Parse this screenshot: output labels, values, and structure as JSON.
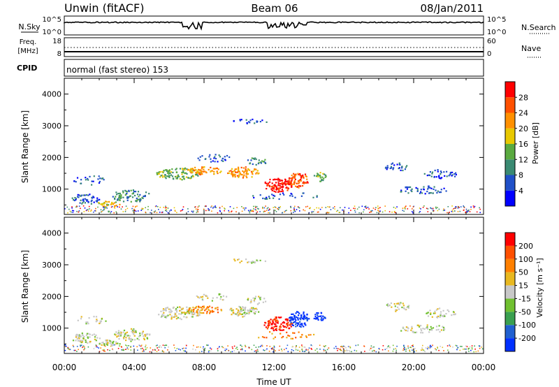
{
  "header": {
    "station": "Unwin (fitACF)",
    "beam": "Beam 06",
    "date": "08/Jan/2011"
  },
  "summary": {
    "nsky_label": "N.Sky",
    "nsky_ticks": [
      "10^5",
      "10^0"
    ],
    "nsearch_label": "N.Search",
    "nsearch_ticks": [
      "10^5",
      "10^0"
    ],
    "freq_label": "Freq.",
    "freq_unit": "[MHz]",
    "freq_ticks": [
      "18",
      "8"
    ],
    "nave_label": "Nave",
    "nave_ticks": [
      "60",
      "0"
    ],
    "cpid_label": "CPID",
    "cpid_text": "normal (fast stereo) 153"
  },
  "chart_data": [
    {
      "type": "heatmap",
      "name": "power",
      "ylabel": "Slant Range [km]",
      "xlabel": "",
      "ylim": [
        200,
        4500
      ],
      "yticks": [
        "1000",
        "2000",
        "3000",
        "4000"
      ],
      "xlim_hours": [
        0,
        24
      ],
      "colorbar": {
        "label": "Power [dB]",
        "ticks": [
          "4",
          "8",
          "12",
          "16",
          "20",
          "24",
          "28"
        ],
        "colors": [
          "#0000ff",
          "#2050c8",
          "#3a8a72",
          "#5aaa40",
          "#e8c800",
          "#ff9000",
          "#ff5000",
          "#ff0000"
        ]
      }
    },
    {
      "type": "heatmap",
      "name": "velocity",
      "ylabel": "Slant Range [km]",
      "xlabel": "Time UT",
      "ylim": [
        200,
        4500
      ],
      "yticks": [
        "1000",
        "2000",
        "3000",
        "4000"
      ],
      "xticks": [
        "00:00",
        "04:00",
        "08:00",
        "12:00",
        "16:00",
        "20:00",
        "00:00"
      ],
      "xlim_hours": [
        0,
        24
      ],
      "colorbar": {
        "label": "Velocity [m s⁻¹]",
        "ticks": [
          "200",
          "100",
          "50",
          "15",
          "-15",
          "-50",
          "-100",
          "-200"
        ],
        "colors": [
          "#0030ff",
          "#2060d0",
          "#3aa050",
          "#70c030",
          "#c8c8c8",
          "#e8b820",
          "#ff8000",
          "#ff5000",
          "#ff0000"
        ]
      }
    }
  ]
}
